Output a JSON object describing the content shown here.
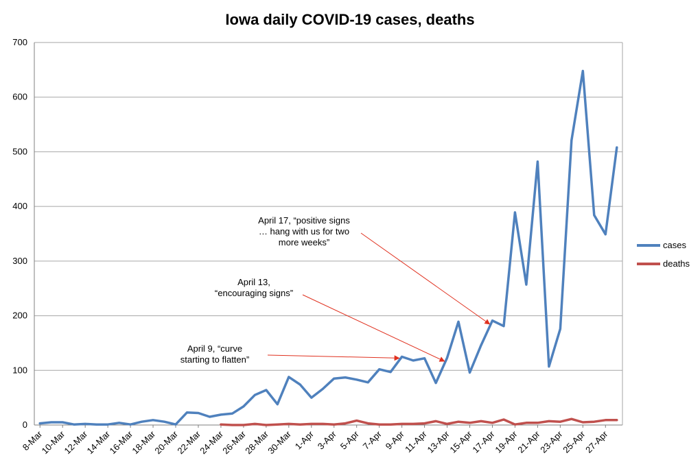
{
  "chart_data": {
    "type": "line",
    "title": "Iowa daily COVID-19 cases, deaths",
    "xlabel": "",
    "ylabel": "",
    "ylim": [
      0,
      700
    ],
    "yticks": [
      0,
      100,
      200,
      300,
      400,
      500,
      600,
      700
    ],
    "grid": true,
    "legend_position": "right",
    "x": [
      "8-Mar",
      "9-Mar",
      "10-Mar",
      "11-Mar",
      "12-Mar",
      "13-Mar",
      "14-Mar",
      "15-Mar",
      "16-Mar",
      "17-Mar",
      "18-Mar",
      "19-Mar",
      "20-Mar",
      "21-Mar",
      "22-Mar",
      "23-Mar",
      "24-Mar",
      "25-Mar",
      "26-Mar",
      "27-Mar",
      "28-Mar",
      "29-Mar",
      "30-Mar",
      "31-Mar",
      "1-Apr",
      "2-Apr",
      "3-Apr",
      "4-Apr",
      "5-Apr",
      "6-Apr",
      "7-Apr",
      "8-Apr",
      "9-Apr",
      "10-Apr",
      "11-Apr",
      "12-Apr",
      "13-Apr",
      "14-Apr",
      "15-Apr",
      "16-Apr",
      "17-Apr",
      "18-Apr",
      "19-Apr",
      "20-Apr",
      "21-Apr",
      "22-Apr",
      "23-Apr",
      "24-Apr",
      "25-Apr",
      "26-Apr",
      "27-Apr",
      "28-Apr"
    ],
    "tick_labels": [
      "8-Mar",
      "10-Mar",
      "12-Mar",
      "14-Mar",
      "16-Mar",
      "18-Mar",
      "20-Mar",
      "22-Mar",
      "24-Mar",
      "26-Mar",
      "28-Mar",
      "30-Mar",
      "1-Apr",
      "3-Apr",
      "5-Apr",
      "7-Apr",
      "9-Apr",
      "11-Apr",
      "13-Apr",
      "15-Apr",
      "17-Apr",
      "19-Apr",
      "21-Apr",
      "23-Apr",
      "25-Apr",
      "27-Apr"
    ],
    "series": [
      {
        "name": "cases",
        "color": "#4f81bd",
        "values": [
          3,
          5,
          5,
          1,
          2,
          1,
          1,
          4,
          1,
          6,
          9,
          6,
          1,
          23,
          22,
          15,
          19,
          21,
          34,
          55,
          64,
          38,
          88,
          74,
          50,
          66,
          85,
          87,
          83,
          78,
          102,
          97,
          125,
          118,
          122,
          77,
          123,
          189,
          96,
          146,
          191,
          181,
          389,
          257,
          482,
          107,
          176,
          521,
          648,
          384,
          349,
          508
        ]
      },
      {
        "name": "deaths",
        "color": "#c0504d",
        "values": [
          null,
          null,
          null,
          null,
          null,
          null,
          null,
          null,
          null,
          null,
          null,
          null,
          null,
          null,
          null,
          null,
          1,
          0,
          0,
          2,
          0,
          1,
          2,
          1,
          2,
          2,
          1,
          3,
          8,
          3,
          1,
          1,
          2,
          2,
          3,
          7,
          2,
          6,
          4,
          7,
          4,
          10,
          1,
          4,
          4,
          7,
          6,
          11,
          5,
          6,
          9,
          9
        ]
      }
    ],
    "annotations": [
      {
        "lines": [
          "April 17, “positive signs",
          "… hang with us for two",
          "more weeks”"
        ],
        "target_x": "17-Apr",
        "target_y": 191
      },
      {
        "lines": [
          "April 13,",
          "“encouraging signs”"
        ],
        "target_x": "13-Apr",
        "target_y": 123
      },
      {
        "lines": [
          "April 9, “curve",
          "starting to flatten”"
        ],
        "target_x": "9-Apr",
        "target_y": 125
      }
    ]
  }
}
